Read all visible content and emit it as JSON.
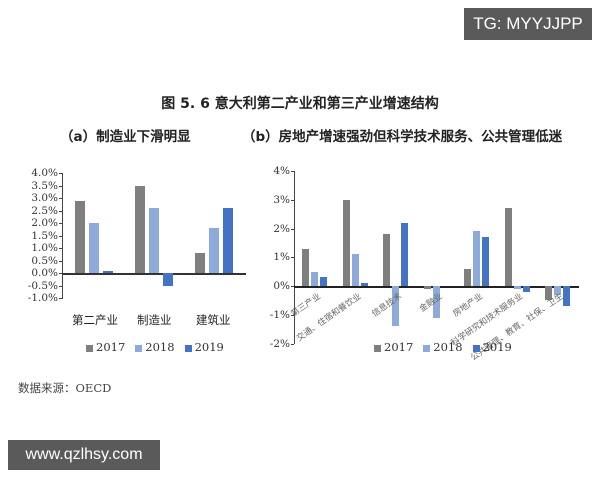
{
  "watermark_top": "TG: MYYJJPP",
  "watermark_bottom": "www.qzlhsy.com",
  "figure_title": "图 5. 6  意大利第二产业和第三产业增速结构",
  "source": "数据来源：OECD",
  "colors": {
    "2017": "#7f7f7f",
    "2018": "#8eaadb",
    "2019": "#4472c4"
  },
  "chart_data": [
    {
      "type": "bar",
      "title": "（a）制造业下滑明显",
      "xlabel": "",
      "ylabel": "",
      "ylim": [
        -1.0,
        4.0
      ],
      "yticks": [
        "4.0%",
        "3.5%",
        "3.0%",
        "2.5%",
        "2.0%",
        "1.5%",
        "1.0%",
        "0.5%",
        "0.0%",
        "-0.5%",
        "-1.0%"
      ],
      "categories": [
        "第二产业",
        "制造业",
        "建筑业"
      ],
      "series": [
        {
          "name": "2017",
          "values": [
            2.9,
            3.5,
            0.8
          ]
        },
        {
          "name": "2018",
          "values": [
            2.0,
            2.6,
            1.8
          ]
        },
        {
          "name": "2019",
          "values": [
            0.1,
            -0.5,
            2.6
          ]
        }
      ],
      "legend": [
        "2017",
        "2018",
        "2019"
      ],
      "legend_position": "bottom",
      "grid": false
    },
    {
      "type": "bar",
      "title": "（b）房地产增速强劲但科学技术服务、公共管理低迷",
      "xlabel": "",
      "ylabel": "",
      "ylim": [
        -2,
        4
      ],
      "yticks": [
        "4%",
        "3%",
        "2%",
        "1%",
        "0%",
        "-1%",
        "-2%"
      ],
      "categories": [
        "第三产业",
        "交通、住宿和餐饮业",
        "信息技术",
        "金融业",
        "房地产业",
        "科学研究和技术服务业",
        "公共管理、教育、社保、卫生"
      ],
      "series": [
        {
          "name": "2017",
          "values": [
            1.3,
            3.0,
            1.8,
            -0.1,
            0.6,
            2.7,
            -0.5
          ]
        },
        {
          "name": "2018",
          "values": [
            0.5,
            1.1,
            -1.4,
            -1.1,
            1.9,
            -0.1,
            -0.3
          ]
        },
        {
          "name": "2019",
          "values": [
            0.3,
            0.1,
            2.2,
            0.0,
            1.7,
            -0.2,
            -0.7
          ]
        }
      ],
      "legend": [
        "2017",
        "2018",
        "2019"
      ],
      "legend_position": "bottom",
      "grid": false
    }
  ]
}
